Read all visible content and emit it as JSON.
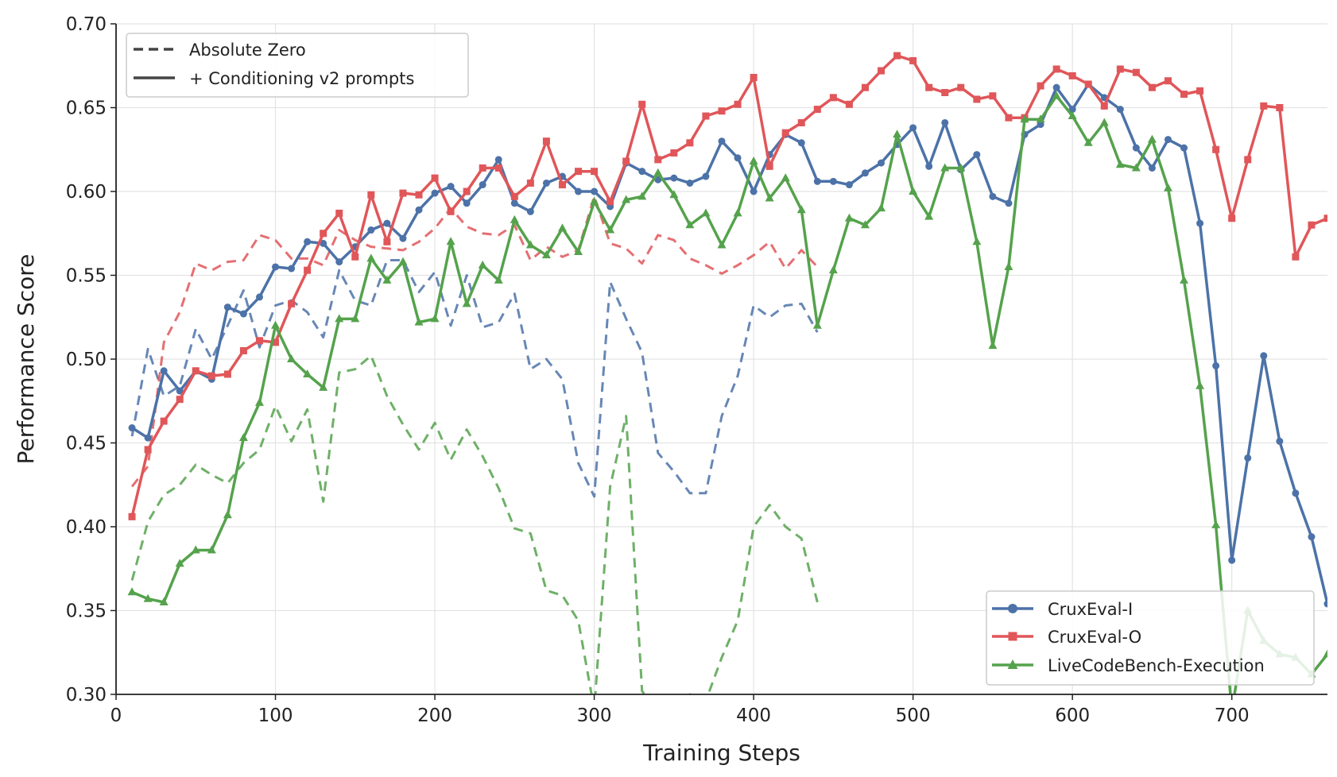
{
  "chart_data": {
    "type": "line",
    "title": "",
    "xlabel": "Training Steps",
    "ylabel": "Performance Score",
    "xlim": [
      0,
      760
    ],
    "ylim": [
      0.3,
      0.7
    ],
    "xticks": [
      0,
      100,
      200,
      300,
      400,
      500,
      600,
      700
    ],
    "xtick_labels": [
      "0",
      "100",
      "200",
      "300",
      "400",
      "500",
      "600",
      "700"
    ],
    "yticks": [
      0.3,
      0.35,
      0.4,
      0.45,
      0.5,
      0.55,
      0.6,
      0.65,
      0.7
    ],
    "ytick_labels": [
      "0.30",
      "0.35",
      "0.40",
      "0.45",
      "0.50",
      "0.55",
      "0.60",
      "0.65",
      "0.70"
    ],
    "grid": true,
    "style_legend": {
      "placement": "top-left",
      "entries": [
        {
          "label": "Absolute Zero",
          "style": "dashed"
        },
        {
          "label": "+ Conditioning v2 prompts",
          "style": "solid"
        }
      ]
    },
    "series_legend": {
      "placement": "bottom-right",
      "entries": [
        {
          "label": "CruxEval-I",
          "color": "#4c72a8",
          "marker": "circle"
        },
        {
          "label": "CruxEval-O",
          "color": "#e05659",
          "marker": "square"
        },
        {
          "label": "LiveCodeBench-Execution",
          "color": "#55a24c",
          "marker": "triangle"
        }
      ]
    },
    "series": [
      {
        "name": "CruxEval-I",
        "color": "#4c72a8",
        "marker": "circle",
        "style": "solid",
        "x": [
          10,
          20,
          30,
          40,
          50,
          60,
          70,
          80,
          90,
          100,
          110,
          120,
          130,
          140,
          150,
          160,
          170,
          180,
          190,
          200,
          210,
          220,
          230,
          240,
          250,
          260,
          270,
          280,
          290,
          300,
          310,
          320,
          330,
          340,
          350,
          360,
          370,
          380,
          390,
          400,
          410,
          420,
          430,
          440,
          450,
          460,
          470,
          480,
          490,
          500,
          510,
          520,
          530,
          540,
          550,
          560,
          570,
          580,
          590,
          600,
          610,
          620,
          630,
          640,
          650,
          660,
          670,
          680,
          690,
          700,
          710,
          720,
          730,
          740,
          750,
          760
        ],
        "y": [
          0.459,
          0.453,
          0.493,
          0.481,
          0.493,
          0.488,
          0.531,
          0.527,
          0.537,
          0.555,
          0.554,
          0.57,
          0.569,
          0.558,
          0.567,
          0.577,
          0.581,
          0.572,
          0.589,
          0.599,
          0.603,
          0.593,
          0.604,
          0.619,
          0.593,
          0.588,
          0.605,
          0.609,
          0.6,
          0.6,
          0.591,
          0.617,
          0.612,
          0.607,
          0.608,
          0.605,
          0.609,
          0.63,
          0.62,
          0.6,
          0.622,
          0.634,
          0.629,
          0.606,
          0.606,
          0.604,
          0.611,
          0.617,
          0.628,
          0.638,
          0.615,
          0.641,
          0.613,
          0.622,
          0.597,
          0.593,
          0.634,
          0.64,
          0.662,
          0.649,
          0.664,
          0.656,
          0.649,
          0.626,
          0.614,
          0.631,
          0.626,
          0.581,
          0.496,
          0.38,
          0.441,
          0.502,
          0.451,
          0.42,
          0.394,
          0.354
        ]
      },
      {
        "name": "CruxEval-O",
        "color": "#e05659",
        "marker": "square",
        "style": "solid",
        "x": [
          10,
          20,
          30,
          40,
          50,
          60,
          70,
          80,
          90,
          100,
          110,
          120,
          130,
          140,
          150,
          160,
          170,
          180,
          190,
          200,
          210,
          220,
          230,
          240,
          250,
          260,
          270,
          280,
          290,
          300,
          310,
          320,
          330,
          340,
          350,
          360,
          370,
          380,
          390,
          400,
          410,
          420,
          430,
          440,
          450,
          460,
          470,
          480,
          490,
          500,
          510,
          520,
          530,
          540,
          550,
          560,
          570,
          580,
          590,
          600,
          610,
          620,
          630,
          640,
          650,
          660,
          670,
          680,
          690,
          700,
          710,
          720,
          730,
          740,
          750,
          760
        ],
        "y": [
          0.406,
          0.446,
          0.463,
          0.476,
          0.493,
          0.49,
          0.491,
          0.505,
          0.511,
          0.51,
          0.533,
          0.553,
          0.575,
          0.587,
          0.561,
          0.598,
          0.57,
          0.599,
          0.598,
          0.608,
          0.588,
          0.6,
          0.614,
          0.614,
          0.597,
          0.605,
          0.63,
          0.604,
          0.612,
          0.612,
          0.594,
          0.618,
          0.652,
          0.619,
          0.623,
          0.629,
          0.645,
          0.648,
          0.652,
          0.668,
          0.615,
          0.635,
          0.641,
          0.649,
          0.656,
          0.652,
          0.662,
          0.672,
          0.681,
          0.678,
          0.662,
          0.659,
          0.662,
          0.655,
          0.657,
          0.644,
          0.644,
          0.663,
          0.673,
          0.669,
          0.664,
          0.651,
          0.673,
          0.671,
          0.662,
          0.666,
          0.658,
          0.66,
          0.625,
          0.584,
          0.619,
          0.651,
          0.65,
          0.561,
          0.58,
          0.584
        ]
      },
      {
        "name": "LiveCodeBench-Execution",
        "color": "#55a24c",
        "marker": "triangle",
        "style": "solid",
        "x": [
          10,
          20,
          30,
          40,
          50,
          60,
          70,
          80,
          90,
          100,
          110,
          120,
          130,
          140,
          150,
          160,
          170,
          180,
          190,
          200,
          210,
          220,
          230,
          240,
          250,
          260,
          270,
          280,
          290,
          300,
          310,
          320,
          330,
          340,
          350,
          360,
          370,
          380,
          390,
          400,
          410,
          420,
          430,
          440,
          450,
          460,
          470,
          480,
          490,
          500,
          510,
          520,
          530,
          540,
          550,
          560,
          570,
          580,
          590,
          600,
          610,
          620,
          630,
          640,
          650,
          660,
          670,
          680,
          690,
          700,
          710,
          720,
          730,
          740,
          750,
          760
        ],
        "y": [
          0.361,
          0.357,
          0.355,
          0.378,
          0.386,
          0.386,
          0.407,
          0.453,
          0.474,
          0.52,
          0.5,
          0.491,
          0.483,
          0.524,
          0.524,
          0.56,
          0.547,
          0.558,
          0.522,
          0.524,
          0.57,
          0.533,
          0.556,
          0.547,
          0.583,
          0.568,
          0.562,
          0.578,
          0.564,
          0.594,
          0.577,
          0.595,
          0.597,
          0.611,
          0.598,
          0.58,
          0.587,
          0.568,
          0.587,
          0.618,
          0.596,
          0.608,
          0.589,
          0.52,
          0.553,
          0.584,
          0.58,
          0.59,
          0.634,
          0.6,
          0.585,
          0.614,
          0.614,
          0.57,
          0.508,
          0.555,
          0.643,
          0.643,
          0.657,
          0.645,
          0.629,
          0.641,
          0.616,
          0.614,
          0.631,
          0.602,
          0.547,
          0.484,
          0.401,
          0.29,
          0.35,
          0.332,
          0.324,
          0.322,
          0.312,
          0.324
        ]
      },
      {
        "name": "CruxEval-I (Absolute Zero)",
        "color": "#4c72a8",
        "marker": "none",
        "style": "dashed",
        "x": [
          10,
          20,
          30,
          40,
          50,
          60,
          70,
          80,
          90,
          100,
          110,
          120,
          130,
          140,
          150,
          160,
          170,
          180,
          190,
          200,
          210,
          220,
          230,
          240,
          250,
          260,
          270,
          280,
          290,
          300,
          310,
          320,
          330,
          340,
          350,
          360,
          370,
          380,
          390,
          400,
          410,
          420,
          430,
          440
        ],
        "y": [
          0.454,
          0.506,
          0.478,
          0.484,
          0.518,
          0.5,
          0.52,
          0.541,
          0.507,
          0.532,
          0.535,
          0.528,
          0.513,
          0.553,
          0.535,
          0.532,
          0.559,
          0.559,
          0.54,
          0.552,
          0.52,
          0.55,
          0.519,
          0.522,
          0.539,
          0.494,
          0.5,
          0.488,
          0.438,
          0.418,
          0.546,
          0.524,
          0.504,
          0.444,
          0.433,
          0.42,
          0.42,
          0.466,
          0.49,
          0.532,
          0.525,
          0.532,
          0.533,
          0.516
        ]
      },
      {
        "name": "CruxEval-O (Absolute Zero)",
        "color": "#e05659",
        "marker": "none",
        "style": "dashed",
        "x": [
          10,
          20,
          30,
          40,
          50,
          60,
          70,
          80,
          90,
          100,
          110,
          120,
          130,
          140,
          150,
          160,
          170,
          180,
          190,
          200,
          210,
          220,
          230,
          240,
          250,
          260,
          270,
          280,
          290,
          300,
          310,
          320,
          330,
          340,
          350,
          360,
          370,
          380,
          390,
          400,
          410,
          420,
          430,
          440
        ],
        "y": [
          0.424,
          0.436,
          0.51,
          0.528,
          0.557,
          0.553,
          0.558,
          0.559,
          0.574,
          0.571,
          0.56,
          0.56,
          0.556,
          0.577,
          0.571,
          0.567,
          0.566,
          0.565,
          0.57,
          0.578,
          0.59,
          0.579,
          0.575,
          0.574,
          0.58,
          0.559,
          0.567,
          0.561,
          0.565,
          0.597,
          0.569,
          0.566,
          0.557,
          0.574,
          0.571,
          0.56,
          0.556,
          0.551,
          0.556,
          0.562,
          0.57,
          0.554,
          0.565,
          0.555
        ]
      },
      {
        "name": "LiveCodeBench-Execution (Absolute Zero)",
        "color": "#55a24c",
        "marker": "none",
        "style": "dashed",
        "x": [
          10,
          20,
          30,
          40,
          50,
          60,
          70,
          80,
          90,
          100,
          110,
          120,
          130,
          140,
          150,
          160,
          170,
          180,
          190,
          200,
          210,
          220,
          230,
          240,
          250,
          260,
          270,
          280,
          290,
          300,
          310,
          320,
          330,
          340,
          350,
          360,
          370,
          380,
          390,
          400,
          410,
          420,
          430,
          440
        ],
        "y": [
          0.368,
          0.403,
          0.419,
          0.425,
          0.437,
          0.431,
          0.426,
          0.438,
          0.446,
          0.472,
          0.451,
          0.47,
          0.415,
          0.492,
          0.494,
          0.502,
          0.478,
          0.461,
          0.446,
          0.462,
          0.44,
          0.458,
          0.442,
          0.423,
          0.399,
          0.396,
          0.362,
          0.359,
          0.344,
          0.291,
          0.424,
          0.466,
          0.302,
          0.29,
          0.294,
          0.3,
          0.296,
          0.322,
          0.344,
          0.4,
          0.413,
          0.4,
          0.393,
          0.355
        ]
      }
    ]
  }
}
